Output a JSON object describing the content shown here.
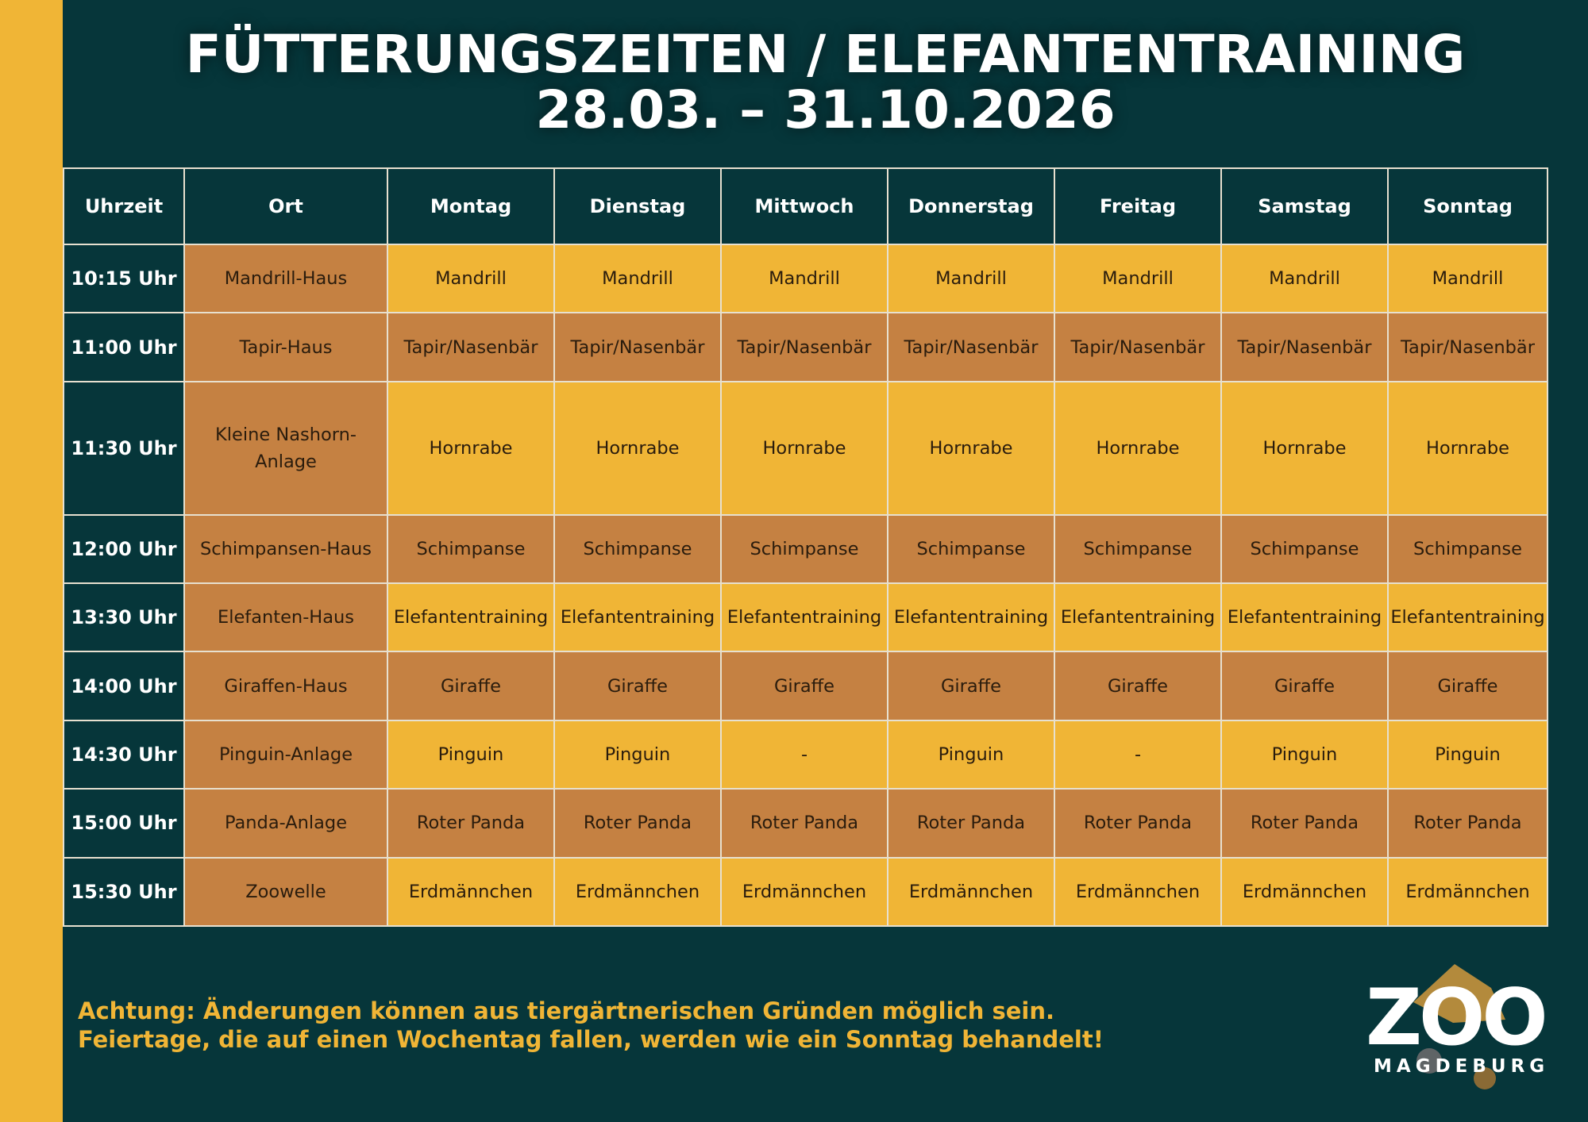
{
  "title": {
    "line1": "FÜTTERUNGSZEITEN / ELEFANTENTRAINING",
    "line2": "28.03. – 31.10.2026"
  },
  "table": {
    "headers": [
      "Uhrzeit",
      "Ort",
      "Montag",
      "Dienstag",
      "Mittwoch",
      "Donnerstag",
      "Freitag",
      "Samstag",
      "Sonntag"
    ],
    "rows": [
      {
        "time": "10:15 Uhr",
        "ort": "Mandrill-Haus",
        "cells": [
          "Mandrill",
          "Mandrill",
          "Mandrill",
          "Mandrill",
          "Mandrill",
          "Mandrill",
          "Mandrill"
        ]
      },
      {
        "time": "11:00 Uhr",
        "ort": "Tapir-Haus",
        "cells": [
          "Tapir/Nasenbär",
          "Tapir/Nasenbär",
          "Tapir/Nasenbär",
          "Tapir/Nasenbär",
          "Tapir/Nasenbär",
          "Tapir/Nasenbär",
          "Tapir/Nasenbär"
        ]
      },
      {
        "time": "11:30 Uhr",
        "ort_line1": "Kleine Nashorn-",
        "ort_line2": "Anlage",
        "cells": [
          "Hornrabe",
          "Hornrabe",
          "Hornrabe",
          "Hornrabe",
          "Hornrabe",
          "Hornrabe",
          "Hornrabe"
        ]
      },
      {
        "time": "12:00 Uhr",
        "ort": "Schimpansen-Haus",
        "cells": [
          "Schimpanse",
          "Schimpanse",
          "Schimpanse",
          "Schimpanse",
          "Schimpanse",
          "Schimpanse",
          "Schimpanse"
        ]
      },
      {
        "time": "13:30 Uhr",
        "ort": "Elefanten-Haus",
        "cells": [
          "Elefantentraining",
          "Elefantentraining",
          "Elefantentraining",
          "Elefantentraining",
          "Elefantentraining",
          "Elefantentraining",
          "Elefantentraining"
        ]
      },
      {
        "time": "14:00 Uhr",
        "ort": "Giraffen-Haus",
        "cells": [
          "Giraffe",
          "Giraffe",
          "Giraffe",
          "Giraffe",
          "Giraffe",
          "Giraffe",
          "Giraffe"
        ]
      },
      {
        "time": "14:30 Uhr",
        "ort": "Pinguin-Anlage",
        "cells": [
          "Pinguin",
          "Pinguin",
          "-",
          "Pinguin",
          "-",
          "Pinguin",
          "Pinguin"
        ]
      },
      {
        "time": "15:00 Uhr",
        "ort": "Panda-Anlage",
        "cells": [
          "Roter Panda",
          "Roter Panda",
          "Roter Panda",
          "Roter Panda",
          "Roter Panda",
          "Roter Panda",
          "Roter Panda"
        ]
      },
      {
        "time": "15:30 Uhr",
        "ort": "Zoowelle",
        "cells": [
          "Erdmännchen",
          "Erdmännchen",
          "Erdmännchen",
          "Erdmännchen",
          "Erdmännchen",
          "Erdmännchen",
          "Erdmännchen"
        ]
      }
    ]
  },
  "notes": {
    "line1": "Achtung: Änderungen können aus tiergärtnerischen Gründen möglich sein.",
    "line2": "Feiertage, die auf einen Wochentag fallen, werden wie ein Sonntag behandelt!"
  },
  "logo": {
    "word": "ZOO",
    "sub": "MAGDEBURG"
  },
  "colors": {
    "background": "#06363a",
    "yellow": "#f0b536",
    "brown": "#c58142",
    "grid": "#e7e0cf"
  }
}
